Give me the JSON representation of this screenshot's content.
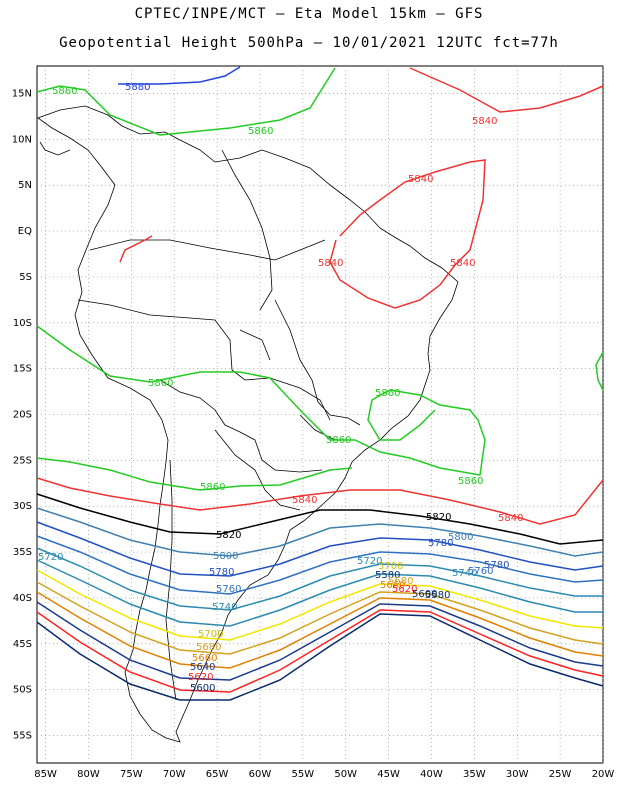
{
  "title": {
    "line1": "CPTEC/INPE/MCT –  Eta Model 15km – GFS",
    "line2": "Geopotential Height 500hPa – 10/01/2021 12UTC fct=77h"
  },
  "axes": {
    "lat_labels": [
      "15N",
      "10N",
      "5N",
      "EQ",
      "5S",
      "10S",
      "15S",
      "20S",
      "25S",
      "30S",
      "35S",
      "40S",
      "45S",
      "50S",
      "55S"
    ],
    "lon_labels": [
      "85W",
      "80W",
      "75W",
      "70W",
      "65W",
      "60W",
      "55W",
      "50W",
      "45W",
      "40W",
      "35W",
      "30W",
      "25W",
      "20W"
    ],
    "lat_range": [
      18,
      -58
    ],
    "lon_range": [
      -86,
      -20
    ],
    "grid": true
  },
  "colors": {
    "5580": "#08306b",
    "5600": "#0a2a6b",
    "5620": "#ff2222",
    "5640": "#1a3a8a",
    "5660": "#e08000",
    "5680": "#d4a020",
    "5700": "#f2e600",
    "5720": "#2a8ab0",
    "5740": "#2a8ab0",
    "5760": "#3070c0",
    "5780": "#2050c0",
    "5800": "#4080b0",
    "5820": "#000000",
    "5840": "#ee3333",
    "5860": "#22cc22",
    "5880": "#2244dd"
  },
  "contour_labels": [
    {
      "text": "5880"
    },
    {
      "text": "5860"
    },
    {
      "text": "5860"
    },
    {
      "text": "5860"
    },
    {
      "text": "5860"
    },
    {
      "text": "5860"
    },
    {
      "text": "5860"
    },
    {
      "text": "5860"
    },
    {
      "text": "5840"
    },
    {
      "text": "5840"
    },
    {
      "text": "5840"
    },
    {
      "text": "5840"
    },
    {
      "text": "5840"
    },
    {
      "text": "5840"
    },
    {
      "text": "5820"
    },
    {
      "text": "5820"
    },
    {
      "text": "5800"
    },
    {
      "text": "5800"
    },
    {
      "text": "5780"
    },
    {
      "text": "5780"
    },
    {
      "text": "5780"
    },
    {
      "text": "5760"
    },
    {
      "text": "5760"
    },
    {
      "text": "5740"
    },
    {
      "text": "5740"
    },
    {
      "text": "5720"
    },
    {
      "text": "5720"
    },
    {
      "text": "5700"
    },
    {
      "text": "5680"
    },
    {
      "text": "5660"
    },
    {
      "text": "5640"
    },
    {
      "text": "5620"
    },
    {
      "text": "5600"
    },
    {
      "text": "5580"
    },
    {
      "text": "5700"
    },
    {
      "text": "5680"
    },
    {
      "text": "5660"
    },
    {
      "text": "5620"
    },
    {
      "text": "5600"
    },
    {
      "text": "5580"
    }
  ]
}
